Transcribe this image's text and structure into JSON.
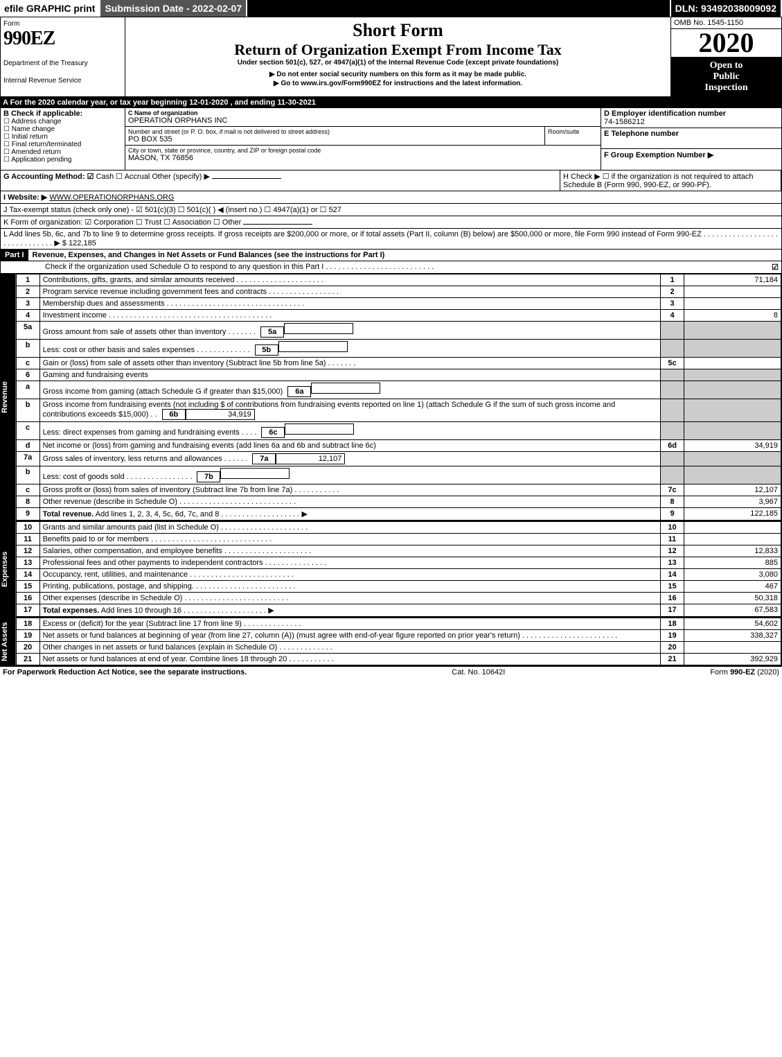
{
  "topbar": {
    "efile": "efile GRAPHIC print",
    "subdate": "Submission Date - 2022-02-07",
    "dln": "DLN: 93492038009092"
  },
  "header": {
    "form_label": "Form",
    "form_no": "990EZ",
    "dept1": "Department of the Treasury",
    "dept2": "Internal Revenue Service",
    "short": "Short Form",
    "return_title": "Return of Organization Exempt From Income Tax",
    "under": "Under section 501(c), 527, or 4947(a)(1) of the Internal Revenue Code (except private foundations)",
    "do_not": "▶ Do not enter social security numbers on this form as it may be made public.",
    "goto": "▶ Go to www.irs.gov/Form990EZ for instructions and the latest information.",
    "omb": "OMB No. 1545-1150",
    "year": "2020",
    "open1": "Open to",
    "open2": "Public",
    "open3": "Inspection"
  },
  "line_a": "A  For the 2020 calendar year, or tax year beginning 12-01-2020 , and ending 11-30-2021",
  "box_b": {
    "label": "B  Check if applicable:",
    "opts": [
      "Address change",
      "Name change",
      "Initial return",
      "Final return/terminated",
      "Amended return",
      "Application pending"
    ]
  },
  "box_c": {
    "label_name": "C Name of organization",
    "name": "OPERATION ORPHANS INC",
    "label_street": "Number and street (or P. O. box, if mail is not delivered to street address)",
    "room": "Room/suite",
    "street": "PO BOX 535",
    "label_city": "City or town, state or province, country, and ZIP or foreign postal code",
    "city": "MASON, TX  76856"
  },
  "box_d": {
    "label": "D Employer identification number",
    "ein": "74-1586212",
    "e_label": "E Telephone number",
    "f_label": "F Group Exemption Number  ▶"
  },
  "line_g": {
    "label": "G Accounting Method:",
    "cash": "Cash",
    "accrual": "Accrual",
    "other": "Other (specify) ▶"
  },
  "line_h": {
    "label": "H  Check ▶ ☐ if the organization is not required to attach Schedule B (Form 990, 990-EZ, or 990-PF)."
  },
  "line_i": {
    "label": "I Website: ▶",
    "url": "WWW.OPERATIONORPHANS.ORG"
  },
  "line_j": "J Tax-exempt status (check only one) - ☑ 501(c)(3) ☐ 501(c)(  ) ◀ (insert no.) ☐ 4947(a)(1) or ☐ 527",
  "line_k": "K Form of organization:  ☑ Corporation  ☐ Trust  ☐ Association  ☐ Other",
  "line_l": {
    "text": "L Add lines 5b, 6c, and 7b to line 9 to determine gross receipts. If gross receipts are $200,000 or more, or if total assets (Part II, column (B) below) are $500,000 or more, file Form 990 instead of Form 990-EZ  . . . . . . . . . . . . . . . . . . . . . . . . . . . . . . ▶ $",
    "amount": "122,185"
  },
  "part1": {
    "label": "Part I",
    "title": "Revenue, Expenses, and Changes in Net Assets or Fund Balances (see the instructions for Part I)",
    "sub": "Check if the organization used Schedule O to respond to any question in this Part I . . . . . . . . . . . . . . . . . . . . . . . . . .",
    "checked": "☑"
  },
  "sections": {
    "revenue": "Revenue",
    "expenses": "Expenses",
    "netassets": "Net Assets"
  },
  "rows": [
    {
      "no": "1",
      "desc": "Contributions, gifts, grants, and similar amounts received . . . . . . . . . . . . . . . . . . . . .",
      "rn": "1",
      "amt": "71,184"
    },
    {
      "no": "2",
      "desc": "Program service revenue including government fees and contracts . . . . . . . . . . . . . . . . .",
      "rn": "2",
      "amt": ""
    },
    {
      "no": "3",
      "desc": "Membership dues and assessments . . . . . . . . . . . . . . . . . . . . . . . . . . . . . . . . .",
      "rn": "3",
      "amt": ""
    },
    {
      "no": "4",
      "desc": "Investment income . . . . . . . . . . . . . . . . . . . . . . . . . . . . . . . . . . . . . . .",
      "rn": "4",
      "amt": "8"
    },
    {
      "no": "5a",
      "desc": "Gross amount from sale of assets other than inventory . . . . . . .",
      "sub": "5a",
      "subamt": "",
      "shade": true
    },
    {
      "no": "b",
      "desc": "Less: cost or other basis and sales expenses . . . . . . . . . . . . .",
      "sub": "5b",
      "subamt": "",
      "shade": true
    },
    {
      "no": "c",
      "desc": "Gain or (loss) from sale of assets other than inventory (Subtract line 5b from line 5a) . . . . . . .",
      "rn": "5c",
      "amt": ""
    },
    {
      "no": "6",
      "desc": "Gaming and fundraising events",
      "shade": true
    },
    {
      "no": "a",
      "desc": "Gross income from gaming (attach Schedule G if greater than $15,000)",
      "sub": "6a",
      "subamt": "",
      "shade": true
    },
    {
      "no": "b",
      "desc": "Gross income from fundraising events (not including $                 of contributions from fundraising events reported on line 1) (attach Schedule G if the sum of such gross income and contributions exceeds $15,000)    . .",
      "sub": "6b",
      "subamt": "34,919",
      "shade": true
    },
    {
      "no": "c",
      "desc": "Less: direct expenses from gaming and fundraising events    . . . .",
      "sub": "6c",
      "subamt": "",
      "shade": true
    },
    {
      "no": "d",
      "desc": "Net income or (loss) from gaming and fundraising events (add lines 6a and 6b and subtract line 6c)",
      "rn": "6d",
      "amt": "34,919"
    },
    {
      "no": "7a",
      "desc": "Gross sales of inventory, less returns and allowances . . . . . .",
      "sub": "7a",
      "subamt": "12,107",
      "shade": true
    },
    {
      "no": "b",
      "desc": "Less: cost of goods sold        . . . . . . . . . . . . . . . .",
      "sub": "7b",
      "subamt": "",
      "shade": true
    },
    {
      "no": "c",
      "desc": "Gross profit or (loss) from sales of inventory (Subtract line 7b from line 7a) . . . . . . . . . . .",
      "rn": "7c",
      "amt": "12,107"
    },
    {
      "no": "8",
      "desc": "Other revenue (describe in Schedule O) . . . . . . . . . . . . . . . . . . . . . . . . . . . .",
      "rn": "8",
      "amt": "3,967"
    },
    {
      "no": "9",
      "desc": "Total revenue. Add lines 1, 2, 3, 4, 5c, 6d, 7c, and 8  . . . . . . . . . . . . . . . . . . .   ▶",
      "rn": "9",
      "amt": "122,185",
      "bold": true
    }
  ],
  "exp_rows": [
    {
      "no": "10",
      "desc": "Grants and similar amounts paid (list in Schedule O) . . . . . . . . . . . . . . . . . . . . .",
      "rn": "10",
      "amt": ""
    },
    {
      "no": "11",
      "desc": "Benefits paid to or for members    . . . . . . . . . . . . . . . . . . . . . . . . . . . . .",
      "rn": "11",
      "amt": ""
    },
    {
      "no": "12",
      "desc": "Salaries, other compensation, and employee benefits . . . . . . . . . . . . . . . . . . . . .",
      "rn": "12",
      "amt": "12,833"
    },
    {
      "no": "13",
      "desc": "Professional fees and other payments to independent contractors . . . . . . . . . . . . . . .",
      "rn": "13",
      "amt": "885"
    },
    {
      "no": "14",
      "desc": "Occupancy, rent, utilities, and maintenance . . . . . . . . . . . . . . . . . . . . . . . . .",
      "rn": "14",
      "amt": "3,080"
    },
    {
      "no": "15",
      "desc": "Printing, publications, postage, and shipping. . . . . . . . . . . . . . . . . . . . . . . . .",
      "rn": "15",
      "amt": "467"
    },
    {
      "no": "16",
      "desc": "Other expenses (describe in Schedule O)    . . . . . . . . . . . . . . . . . . . . . . . . .",
      "rn": "16",
      "amt": "50,318"
    },
    {
      "no": "17",
      "desc": "Total expenses. Add lines 10 through 16    . . . . . . . . . . . . . . . . . . . .   ▶",
      "rn": "17",
      "amt": "67,583",
      "bold": true
    }
  ],
  "na_rows": [
    {
      "no": "18",
      "desc": "Excess or (deficit) for the year (Subtract line 17 from line 9)      . . . . . . . . . . . . . .",
      "rn": "18",
      "amt": "54,602"
    },
    {
      "no": "19",
      "desc": "Net assets or fund balances at beginning of year (from line 27, column (A)) (must agree with end-of-year figure reported on prior year's return) . . . . . . . . . . . . . . . . . . . . . . .",
      "rn": "19",
      "amt": "338,327"
    },
    {
      "no": "20",
      "desc": "Other changes in net assets or fund balances (explain in Schedule O) . . . . . . . . . . . . .",
      "rn": "20",
      "amt": ""
    },
    {
      "no": "21",
      "desc": "Net assets or fund balances at end of year. Combine lines 18 through 20 . . . . . . . . . . .",
      "rn": "21",
      "amt": "392,929"
    }
  ],
  "footer": {
    "left": "For Paperwork Reduction Act Notice, see the separate instructions.",
    "mid": "Cat. No. 10642I",
    "right": "Form 990-EZ (2020)"
  },
  "colors": {
    "black": "#000000",
    "white": "#ffffff",
    "gray_shade": "#cccccc",
    "darkbar": "#555555"
  }
}
